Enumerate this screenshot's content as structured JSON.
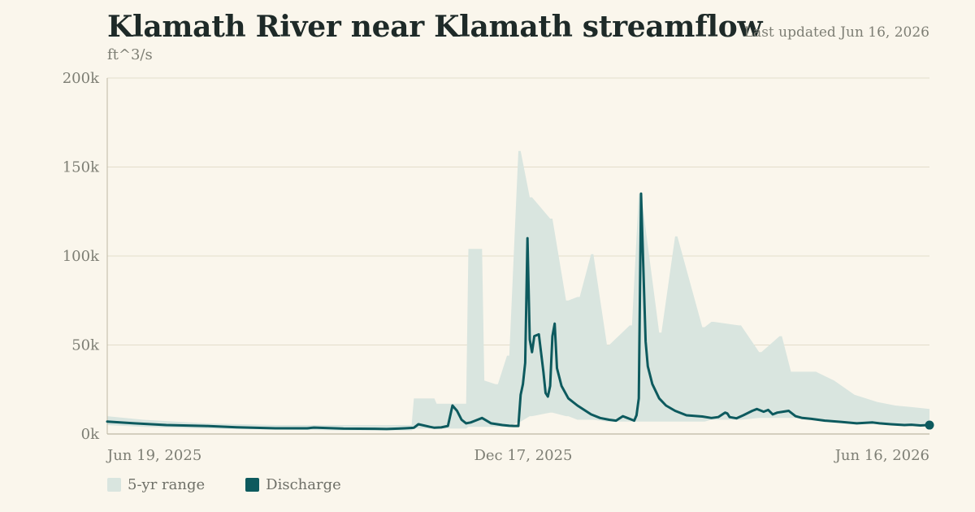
{
  "title": "Klamath River near Klamath streamflow",
  "updated": "Last updated Jun 16, 2026",
  "unit": "ft^3/s",
  "colors": {
    "range": "#d9e5df",
    "discharge": "#0d5a5e",
    "grid": "#e3ddcb",
    "axis": "#bdb8a4",
    "text": "#7d7e74"
  },
  "legend": [
    {
      "label": "5-yr range",
      "swatch": "range"
    },
    {
      "label": "Discharge",
      "swatch": "discharge"
    }
  ],
  "chart_data": {
    "type": "area",
    "x_start": "Jun 19, 2025",
    "x_end": "Jun 16, 2026",
    "xaxis_ticks": [
      "Jun 19, 2025",
      "Dec 17, 2025",
      "Jun 16, 2026"
    ],
    "ylim": [
      0,
      200000
    ],
    "yaxis_ticks": [
      "0k",
      "50k",
      "100k",
      "150k",
      "200k"
    ],
    "grid": true,
    "legend_position": "bottom-left",
    "series": [
      {
        "name": "5-yr range",
        "kind": "band",
        "x": [
          "2025-06-19",
          "2025-07-05",
          "2025-08-01",
          "2025-09-01",
          "2025-10-01",
          "2025-10-20",
          "2025-10-31",
          "2025-11-01",
          "2025-11-10",
          "2025-11-11",
          "2025-11-24",
          "2025-11-25",
          "2025-12-01",
          "2025-12-02",
          "2025-12-07",
          "2025-12-08",
          "2025-12-12",
          "2025-12-13",
          "2025-12-17",
          "2025-12-18",
          "2025-12-22",
          "2025-12-23",
          "2025-12-31",
          "2026-01-01",
          "2026-01-07",
          "2026-01-08",
          "2026-01-12",
          "2026-01-13",
          "2026-01-18",
          "2026-01-19",
          "2026-01-25",
          "2026-01-26",
          "2026-02-04",
          "2026-02-05",
          "2026-02-08",
          "2026-02-09",
          "2026-02-17",
          "2026-02-18",
          "2026-02-24",
          "2026-02-25",
          "2026-03-08",
          "2026-03-09",
          "2026-03-12",
          "2026-03-13",
          "2026-03-24",
          "2026-03-25",
          "2026-04-02",
          "2026-04-03",
          "2026-04-11",
          "2026-04-12",
          "2026-04-16",
          "2026-04-17",
          "2026-04-26",
          "2026-04-27",
          "2026-05-05",
          "2026-05-14",
          "2026-05-24",
          "2026-06-01",
          "2026-06-09",
          "2026-06-16"
        ],
        "high": [
          10000,
          8000,
          6000,
          5000,
          5000,
          5000,
          5000,
          20000,
          20000,
          17000,
          17000,
          104000,
          104000,
          30000,
          28000,
          28000,
          44000,
          44000,
          159000,
          159000,
          133000,
          133000,
          121000,
          121000,
          75000,
          75000,
          77000,
          77000,
          101000,
          101000,
          50000,
          50000,
          61000,
          61000,
          135000,
          135000,
          57000,
          57000,
          111000,
          111000,
          60000,
          60000,
          63000,
          63000,
          61000,
          61000,
          46000,
          46000,
          55000,
          55000,
          35000,
          35000,
          35000,
          35000,
          30000,
          22000,
          18000,
          16000,
          15000,
          14000
        ],
        "low": [
          5000,
          4000,
          3000,
          2500,
          2000,
          2000,
          2000,
          3000,
          3000,
          3000,
          3000,
          4000,
          4000,
          4000,
          4000,
          4000,
          4000,
          4000,
          7000,
          7000,
          10000,
          10000,
          12000,
          12000,
          10000,
          10000,
          8000,
          8000,
          8000,
          8000,
          7000,
          7000,
          7000,
          7000,
          7000,
          7000,
          7000,
          7000,
          7000,
          7000,
          7000,
          7000,
          8000,
          8000,
          8000,
          8000,
          9000,
          9000,
          9000,
          9000,
          9000,
          9000,
          8000,
          8000,
          7000,
          6000,
          5500,
          5000,
          5000,
          5000
        ]
      },
      {
        "name": "Discharge",
        "kind": "line",
        "x": [
          "2025-06-19",
          "2025-07-01",
          "2025-07-15",
          "2025-08-01",
          "2025-08-15",
          "2025-09-01",
          "2025-09-15",
          "2025-09-18",
          "2025-10-01",
          "2025-10-15",
          "2025-10-20",
          "2025-10-25",
          "2025-10-28",
          "2025-11-01",
          "2025-11-03",
          "2025-11-08",
          "2025-11-10",
          "2025-11-13",
          "2025-11-16",
          "2025-11-18",
          "2025-11-20",
          "2025-11-22",
          "2025-11-24",
          "2025-11-26",
          "2025-11-28",
          "2025-12-01",
          "2025-12-05",
          "2025-12-10",
          "2025-12-13",
          "2025-12-15",
          "2025-12-16",
          "2025-12-17",
          "2025-12-18",
          "2025-12-19",
          "2025-12-20",
          "2025-12-21",
          "2025-12-22",
          "2025-12-23",
          "2025-12-24",
          "2025-12-26",
          "2025-12-28",
          "2025-12-29",
          "2025-12-30",
          "2025-12-31",
          "2026-01-01",
          "2026-01-02",
          "2026-01-03",
          "2026-01-05",
          "2026-01-08",
          "2026-01-12",
          "2026-01-18",
          "2026-01-22",
          "2026-01-26",
          "2026-01-29",
          "2026-02-01",
          "2026-02-03",
          "2026-02-05",
          "2026-02-06",
          "2026-02-07",
          "2026-02-08",
          "2026-02-09",
          "2026-02-11",
          "2026-02-12",
          "2026-02-14",
          "2026-02-17",
          "2026-02-20",
          "2026-02-24",
          "2026-03-01",
          "2026-03-08",
          "2026-03-12",
          "2026-03-15",
          "2026-03-18",
          "2026-03-19",
          "2026-03-20",
          "2026-03-23",
          "2026-03-26",
          "2026-03-30",
          "2026-04-01",
          "2026-04-02",
          "2026-04-04",
          "2026-04-06",
          "2026-04-08",
          "2026-04-10",
          "2026-04-15",
          "2026-04-18",
          "2026-04-21",
          "2026-04-25",
          "2026-05-01",
          "2026-05-08",
          "2026-05-15",
          "2026-05-22",
          "2026-05-25",
          "2026-05-30",
          "2026-06-05",
          "2026-06-08",
          "2026-06-12",
          "2026-06-16"
        ],
        "y": [
          7000,
          6000,
          5000,
          4500,
          3800,
          3200,
          3200,
          3600,
          3000,
          2900,
          2800,
          3000,
          3200,
          3500,
          5500,
          4000,
          3500,
          3700,
          4500,
          16000,
          13000,
          8000,
          6000,
          6500,
          7500,
          9000,
          6000,
          5000,
          4600,
          4500,
          4500,
          4500,
          22000,
          28000,
          40000,
          110000,
          53000,
          46000,
          55000,
          56000,
          35000,
          23000,
          21000,
          27000,
          55000,
          62000,
          37000,
          27000,
          20000,
          16000,
          11000,
          9000,
          8000,
          7500,
          10000,
          9000,
          8000,
          7500,
          10500,
          20000,
          135000,
          52000,
          38000,
          28000,
          20000,
          16000,
          13000,
          10500,
          9800,
          9000,
          9500,
          12000,
          11500,
          9500,
          8800,
          10500,
          13000,
          14000,
          13500,
          12500,
          13500,
          11000,
          12000,
          13000,
          10000,
          9000,
          8500,
          7500,
          6800,
          6000,
          6500,
          6000,
          5500,
          5000,
          5200,
          4800,
          5000
        ]
      }
    ]
  }
}
